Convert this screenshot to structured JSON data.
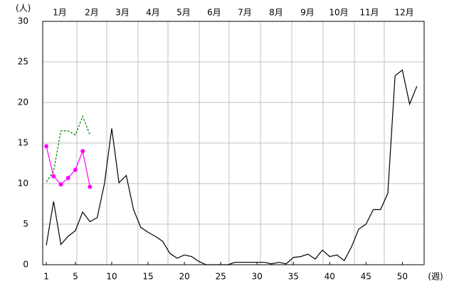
{
  "chart_data": {
    "type": "line",
    "y_label": "(人)",
    "x_label": "(週)",
    "month_labels": [
      "1月",
      "2月",
      "3月",
      "4月",
      "5月",
      "6月",
      "7月",
      "8月",
      "9月",
      "10月",
      "11月",
      "12月"
    ],
    "x": [
      1,
      2,
      3,
      4,
      5,
      6,
      7,
      8,
      9,
      10,
      11,
      12,
      13,
      14,
      15,
      16,
      17,
      18,
      19,
      20,
      21,
      22,
      23,
      24,
      25,
      26,
      27,
      28,
      29,
      30,
      31,
      32,
      33,
      34,
      35,
      36,
      37,
      38,
      39,
      40,
      41,
      42,
      43,
      44,
      45,
      46,
      47,
      48,
      49,
      50,
      51,
      52
    ],
    "xlim": [
      0.5,
      53
    ],
    "xticks": [
      1,
      5,
      10,
      15,
      20,
      25,
      30,
      35,
      40,
      45,
      50
    ],
    "ylim": [
      0,
      30
    ],
    "yticks": [
      0,
      5,
      10,
      15,
      20,
      25,
      30
    ],
    "grid": true,
    "series": [
      {
        "color": "#000000",
        "dash": false,
        "markers": false,
        "values": [
          2.4,
          7.8,
          2.5,
          3.5,
          4.2,
          6.5,
          5.3,
          5.8,
          10.0,
          16.8,
          10.1,
          11.0,
          6.8,
          4.6,
          4.0,
          3.5,
          2.9,
          1.4,
          0.8,
          1.2,
          1.0,
          0.4,
          0,
          0,
          0,
          0,
          0.3,
          0.3,
          0.3,
          0.3,
          0.3,
          0.1,
          0.3,
          0.1,
          0.9,
          1.0,
          1.3,
          0.7,
          1.8,
          1.0,
          1.2,
          0.5,
          2.2,
          4.4,
          5.0,
          6.8,
          6.8,
          8.8,
          23.3,
          24.0,
          19.8,
          22.0
        ]
      },
      {
        "color": "#ff00ff",
        "dash": false,
        "markers": true,
        "values": [
          14.6,
          10.9,
          9.9,
          10.7,
          11.7,
          14.0,
          9.6,
          null,
          null,
          null,
          null,
          null,
          null,
          null,
          null,
          null,
          null,
          null,
          null,
          null,
          null,
          null,
          null,
          null,
          null,
          null,
          null,
          null,
          null,
          null,
          null,
          null,
          null,
          null,
          null,
          null,
          null,
          null,
          null,
          null,
          null,
          null,
          null,
          null,
          null,
          null,
          null,
          null,
          null,
          null,
          null,
          null
        ]
      },
      {
        "color": "#008000",
        "dash": true,
        "markers": false,
        "values": [
          10.2,
          11.5,
          16.5,
          16.5,
          16.0,
          18.3,
          16.0,
          null,
          null,
          null,
          null,
          null,
          null,
          null,
          null,
          null,
          null,
          null,
          null,
          null,
          null,
          null,
          null,
          null,
          null,
          null,
          null,
          null,
          null,
          null,
          null,
          null,
          null,
          null,
          null,
          null,
          null,
          null,
          null,
          null,
          null,
          null,
          null,
          null,
          null,
          null,
          null,
          null,
          null,
          null,
          null,
          null
        ]
      }
    ]
  }
}
